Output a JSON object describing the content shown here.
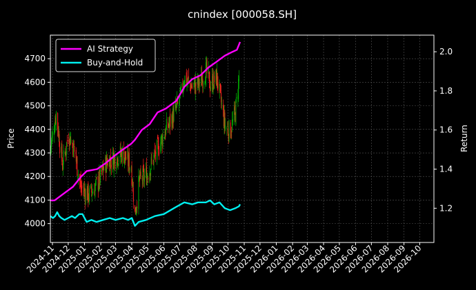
{
  "chart_data": {
    "type": "line",
    "title": "cnindex [000058.SH]",
    "ylabel_left": "Price",
    "ylabel_right": "Return",
    "ylim_left": [
      3920,
      4800
    ],
    "ylim_right": [
      1.025,
      2.085
    ],
    "xlim": [
      "2024-10-28",
      "2026-10-28"
    ],
    "yticks_left": [
      4000,
      4100,
      4200,
      4300,
      4400,
      4500,
      4600,
      4700
    ],
    "yticks_right": [
      1.2,
      1.4,
      1.6,
      1.8,
      2.0
    ],
    "xticks": [
      "2024-11",
      "2024-12",
      "2025-01",
      "2025-02",
      "2025-03",
      "2025-04",
      "2025-05",
      "2025-06",
      "2025-07",
      "2025-08",
      "2025-09",
      "2025-10",
      "2025-11",
      "2025-12",
      "2026-01",
      "2026-02",
      "2026-03",
      "2026-04",
      "2026-05",
      "2026-06",
      "2026-07",
      "2026-08",
      "2026-09",
      "2026-10"
    ],
    "grid": true,
    "legend_position": "top-left",
    "colors": {
      "up": "#00b000",
      "down": "#ff2020",
      "ai": "#ff00ff",
      "bh": "#00f0f0",
      "background": "#000000",
      "grid": "#555555"
    },
    "price_keypoints": [
      [
        "2024-10-28",
        4320
      ],
      [
        "2024-11-08",
        4470
      ],
      [
        "2024-11-20",
        4250
      ],
      [
        "2024-12-02",
        4380
      ],
      [
        "2024-12-12",
        4320
      ],
      [
        "2024-12-25",
        4150
      ],
      [
        "2025-01-10",
        4120
      ],
      [
        "2025-01-28",
        4180
      ],
      [
        "2025-02-12",
        4260
      ],
      [
        "2025-02-28",
        4280
      ],
      [
        "2025-03-15",
        4300
      ],
      [
        "2025-03-31",
        4240
      ],
      [
        "2025-04-07",
        4040
      ],
      [
        "2025-04-15",
        4180
      ],
      [
        "2025-04-30",
        4210
      ],
      [
        "2025-05-15",
        4290
      ],
      [
        "2025-06-01",
        4380
      ],
      [
        "2025-06-15",
        4440
      ],
      [
        "2025-07-01",
        4520
      ],
      [
        "2025-07-10",
        4620
      ],
      [
        "2025-07-25",
        4580
      ],
      [
        "2025-08-10",
        4600
      ],
      [
        "2025-08-20",
        4650
      ],
      [
        "2025-08-28",
        4590
      ],
      [
        "2025-09-10",
        4620
      ],
      [
        "2025-09-25",
        4420
      ],
      [
        "2025-10-05",
        4390
      ],
      [
        "2025-10-15",
        4470
      ],
      [
        "2025-10-22",
        4620
      ]
    ],
    "series": [
      {
        "name": "AI Strategy",
        "points": [
          [
            "2024-10-28",
            1.24
          ],
          [
            "2024-11-05",
            1.24
          ],
          [
            "2024-11-20",
            1.27
          ],
          [
            "2024-12-10",
            1.31
          ],
          [
            "2024-12-25",
            1.36
          ],
          [
            "2025-01-05",
            1.39
          ],
          [
            "2025-01-25",
            1.4
          ],
          [
            "2025-02-10",
            1.43
          ],
          [
            "2025-02-28",
            1.47
          ],
          [
            "2025-03-15",
            1.5
          ],
          [
            "2025-03-31",
            1.53
          ],
          [
            "2025-04-07",
            1.55
          ],
          [
            "2025-04-20",
            1.6
          ],
          [
            "2025-05-05",
            1.63
          ],
          [
            "2025-05-20",
            1.69
          ],
          [
            "2025-06-05",
            1.71
          ],
          [
            "2025-06-25",
            1.75
          ],
          [
            "2025-07-10",
            1.82
          ],
          [
            "2025-07-25",
            1.86
          ],
          [
            "2025-08-10",
            1.88
          ],
          [
            "2025-08-25",
            1.92
          ],
          [
            "2025-09-10",
            1.95
          ],
          [
            "2025-09-25",
            1.98
          ],
          [
            "2025-10-10",
            2.0
          ],
          [
            "2025-10-18",
            2.01
          ],
          [
            "2025-10-24",
            2.05
          ]
        ]
      },
      {
        "name": "Buy-and-Hold",
        "points": [
          [
            "2024-10-28",
            1.16
          ],
          [
            "2024-11-02",
            1.15
          ],
          [
            "2024-11-06",
            1.16
          ],
          [
            "2024-11-10",
            1.18
          ],
          [
            "2024-11-14",
            1.16
          ],
          [
            "2024-11-18",
            1.15
          ],
          [
            "2024-11-24",
            1.14
          ],
          [
            "2024-12-01",
            1.15
          ],
          [
            "2024-12-08",
            1.16
          ],
          [
            "2024-12-14",
            1.15
          ],
          [
            "2024-12-22",
            1.17
          ],
          [
            "2024-12-28",
            1.17
          ],
          [
            "2025-01-05",
            1.13
          ],
          [
            "2025-01-14",
            1.14
          ],
          [
            "2025-01-24",
            1.13
          ],
          [
            "2025-02-05",
            1.14
          ],
          [
            "2025-02-18",
            1.15
          ],
          [
            "2025-03-01",
            1.14
          ],
          [
            "2025-03-15",
            1.15
          ],
          [
            "2025-03-25",
            1.14
          ],
          [
            "2025-04-01",
            1.15
          ],
          [
            "2025-04-07",
            1.11
          ],
          [
            "2025-04-14",
            1.13
          ],
          [
            "2025-04-28",
            1.14
          ],
          [
            "2025-05-15",
            1.16
          ],
          [
            "2025-06-01",
            1.17
          ],
          [
            "2025-06-20",
            1.2
          ],
          [
            "2025-07-10",
            1.23
          ],
          [
            "2025-07-25",
            1.22
          ],
          [
            "2025-08-05",
            1.23
          ],
          [
            "2025-08-20",
            1.23
          ],
          [
            "2025-08-28",
            1.24
          ],
          [
            "2025-09-05",
            1.22
          ],
          [
            "2025-09-15",
            1.23
          ],
          [
            "2025-09-25",
            1.2
          ],
          [
            "2025-10-05",
            1.19
          ],
          [
            "2025-10-15",
            1.2
          ],
          [
            "2025-10-22",
            1.21
          ],
          [
            "2025-10-24",
            1.22
          ]
        ]
      }
    ]
  }
}
